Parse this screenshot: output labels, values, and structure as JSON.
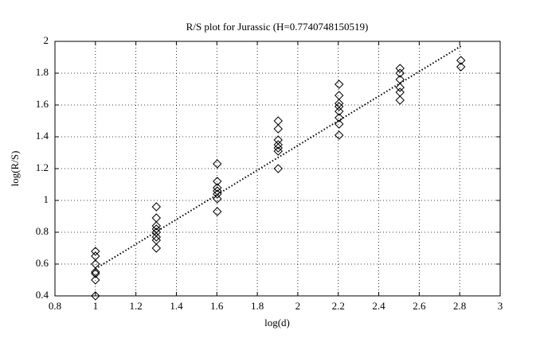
{
  "chart_data": {
    "type": "scatter",
    "title": "R/S plot for Jurassic (H=0.7740748150519)",
    "x_label": "log(d)",
    "y_label": "log(R/S)",
    "xlim": [
      0.8,
      3
    ],
    "ylim": [
      0.4,
      2
    ],
    "xticks": [
      0.8,
      1,
      1.2,
      1.4,
      1.6,
      1.8,
      2,
      2.2,
      2.4,
      2.6,
      2.8,
      3
    ],
    "yticks": [
      0.4,
      0.6,
      0.8,
      1,
      1.2,
      1.4,
      1.6,
      1.8,
      2
    ],
    "grid": true,
    "color": "#000000",
    "points": {
      "x": [
        1,
        1,
        1,
        1,
        1,
        1,
        1,
        1.301,
        1.301,
        1.301,
        1.301,
        1.301,
        1.301,
        1.301,
        1.301,
        1.602,
        1.602,
        1.602,
        1.602,
        1.602,
        1.602,
        1.602,
        1.903,
        1.903,
        1.903,
        1.903,
        1.903,
        1.903,
        1.903,
        2.204,
        2.204,
        2.204,
        2.204,
        2.204,
        2.204,
        2.204,
        2.204,
        2.505,
        2.505,
        2.505,
        2.505,
        2.505,
        2.505,
        2.806,
        2.806
      ],
      "y": [
        0.68,
        0.65,
        0.6,
        0.55,
        0.54,
        0.5,
        0.4,
        0.96,
        0.89,
        0.84,
        0.82,
        0.8,
        0.77,
        0.75,
        0.7,
        1.23,
        1.12,
        1.08,
        1.06,
        1.04,
        1.01,
        0.93,
        1.5,
        1.45,
        1.38,
        1.35,
        1.33,
        1.31,
        1.2,
        1.73,
        1.66,
        1.61,
        1.59,
        1.56,
        1.52,
        1.48,
        1.41,
        1.83,
        1.8,
        1.76,
        1.71,
        1.68,
        1.63,
        1.88,
        1.84
      ]
    },
    "fit_line": {
      "x": [
        1,
        2.806
      ],
      "y": [
        0.57,
        1.97
      ]
    }
  }
}
